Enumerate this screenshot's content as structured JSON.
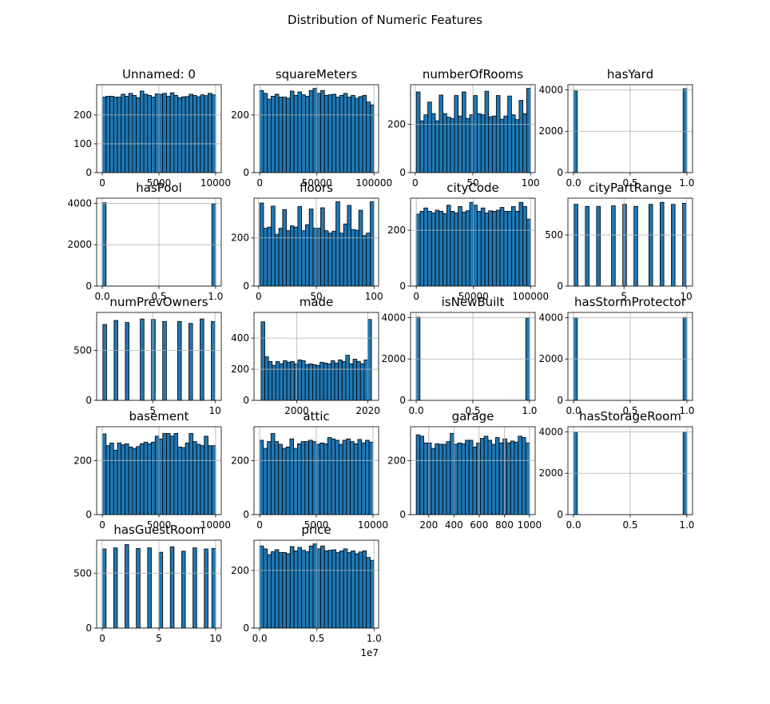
{
  "figure": {
    "suptitle": "Distribution of Numeric Features"
  },
  "colors": {
    "bar_fill": "#1f77b4",
    "bar_edge": "#000000",
    "grid": "#b0b0b0"
  },
  "chart_data": [
    {
      "type": "bar",
      "title": "Unnamed: 0",
      "grid": true,
      "bins": 30,
      "xlim": [
        -500,
        10500
      ],
      "ylim": [
        0,
        305
      ],
      "xticks": [
        0,
        5000,
        10000
      ],
      "xtick_labels": [
        "0",
        "5000",
        "10000"
      ],
      "yticks": [
        0,
        100,
        200
      ],
      "ytick_labels": [
        "0",
        "100",
        "200"
      ],
      "bin_range": [
        0,
        10000
      ],
      "values": [
        262,
        265,
        265,
        262,
        262,
        272,
        265,
        275,
        268,
        260,
        283,
        272,
        268,
        262,
        273,
        272,
        275,
        265,
        277,
        268,
        260,
        263,
        264,
        272,
        268,
        263,
        270,
        267,
        275,
        270
      ]
    },
    {
      "type": "bar",
      "title": "squareMeters",
      "grid": true,
      "bins": 30,
      "xlim": [
        -5000,
        104000
      ],
      "ylim": [
        0,
        305
      ],
      "xticks": [
        0,
        50000,
        100000
      ],
      "xtick_labels": [
        "0",
        "50000",
        "100000"
      ],
      "yticks": [
        0,
        200
      ],
      "ytick_labels": [
        "0",
        "200"
      ],
      "bin_range": [
        0,
        100000
      ],
      "values": [
        285,
        275,
        255,
        265,
        272,
        262,
        262,
        258,
        283,
        268,
        280,
        270,
        265,
        285,
        292,
        275,
        285,
        268,
        270,
        272,
        262,
        268,
        275,
        262,
        268,
        258,
        264,
        268,
        245,
        235
      ]
    },
    {
      "type": "bar",
      "title": "numberOfRooms",
      "grid": true,
      "bins": 30,
      "xlim": [
        -4,
        104
      ],
      "ylim": [
        0,
        365
      ],
      "xticks": [
        0,
        50,
        100
      ],
      "xtick_labels": [
        "0",
        "50",
        "100"
      ],
      "yticks": [
        0,
        200
      ],
      "ytick_labels": [
        "0",
        "200"
      ],
      "bin_range": [
        1,
        100
      ],
      "values": [
        335,
        215,
        240,
        293,
        245,
        215,
        322,
        245,
        230,
        225,
        320,
        235,
        335,
        225,
        240,
        320,
        245,
        240,
        338,
        232,
        235,
        320,
        222,
        235,
        318,
        240,
        220,
        300,
        245,
        350
      ]
    },
    {
      "type": "bar",
      "title": "hasYard",
      "grid": true,
      "bins": 30,
      "xlim": [
        -0.05,
        1.05
      ],
      "ylim": [
        0,
        4250
      ],
      "xticks": [
        0,
        0.5,
        1
      ],
      "xtick_labels": [
        "0.0",
        "0.5",
        "1.0"
      ],
      "yticks": [
        0,
        2000,
        4000
      ],
      "ytick_labels": [
        "0",
        "2000",
        "4000"
      ],
      "bin_range": [
        0,
        1
      ],
      "values": [
        3945,
        0,
        0,
        0,
        0,
        0,
        0,
        0,
        0,
        0,
        0,
        0,
        0,
        0,
        0,
        0,
        0,
        0,
        0,
        0,
        0,
        0,
        0,
        0,
        0,
        0,
        0,
        0,
        0,
        4055
      ]
    },
    {
      "type": "bar",
      "title": "hasPool",
      "grid": true,
      "bins": 30,
      "xlim": [
        -0.05,
        1.05
      ],
      "ylim": [
        0,
        4250
      ],
      "xticks": [
        0,
        0.5,
        1
      ],
      "xtick_labels": [
        "0.0",
        "0.5",
        "1.0"
      ],
      "yticks": [
        0,
        2000,
        4000
      ],
      "ytick_labels": [
        "0",
        "2000",
        "4000"
      ],
      "bin_range": [
        0,
        1
      ],
      "values": [
        4030,
        0,
        0,
        0,
        0,
        0,
        0,
        0,
        0,
        0,
        0,
        0,
        0,
        0,
        0,
        0,
        0,
        0,
        0,
        0,
        0,
        0,
        0,
        0,
        0,
        0,
        0,
        0,
        0,
        3970
      ]
    },
    {
      "type": "bar",
      "title": "floors",
      "grid": true,
      "bins": 30,
      "xlim": [
        -4,
        104
      ],
      "ylim": [
        0,
        365
      ],
      "xticks": [
        0,
        50,
        100
      ],
      "xtick_labels": [
        "0",
        "50",
        "100"
      ],
      "yticks": [
        0,
        200
      ],
      "ytick_labels": [
        "0",
        "200"
      ],
      "bin_range": [
        1,
        100
      ],
      "values": [
        345,
        240,
        245,
        332,
        215,
        240,
        318,
        230,
        250,
        245,
        330,
        230,
        255,
        320,
        240,
        240,
        325,
        230,
        220,
        228,
        350,
        220,
        258,
        335,
        235,
        232,
        315,
        210,
        220,
        350
      ]
    },
    {
      "type": "bar",
      "title": "cityCode",
      "grid": true,
      "bins": 30,
      "xlim": [
        -5000,
        104000
      ],
      "ylim": [
        0,
        315
      ],
      "xticks": [
        0,
        50000,
        100000
      ],
      "xtick_labels": [
        "0",
        "50000",
        "100000"
      ],
      "yticks": [
        0,
        200
      ],
      "ytick_labels": [
        "0",
        "200"
      ],
      "bin_range": [
        0,
        100000
      ],
      "values": [
        258,
        268,
        280,
        268,
        262,
        272,
        268,
        260,
        290,
        268,
        262,
        285,
        265,
        270,
        300,
        290,
        268,
        280,
        262,
        270,
        268,
        272,
        282,
        268,
        268,
        285,
        268,
        300,
        285,
        240
      ]
    },
    {
      "type": "bar",
      "title": "cityPartRange",
      "grid": true,
      "bins": 30,
      "xlim": [
        0.5,
        10.5
      ],
      "ylim": [
        0,
        860
      ],
      "xticks": [
        5,
        10
      ],
      "xtick_labels": [
        "5",
        "10"
      ],
      "yticks": [
        0,
        500
      ],
      "ytick_labels": [
        "0",
        "500"
      ],
      "bin_range": [
        1,
        10
      ],
      "values": [
        800,
        0,
        0,
        780,
        0,
        0,
        780,
        0,
        0,
        0,
        785,
        0,
        0,
        800,
        0,
        0,
        780,
        0,
        0,
        0,
        800,
        0,
        0,
        820,
        0,
        0,
        800,
        0,
        0,
        810
      ]
    },
    {
      "type": "bar",
      "title": "numPrevOwners",
      "grid": true,
      "bins": 30,
      "xlim": [
        0.5,
        10.5
      ],
      "ylim": [
        0,
        880
      ],
      "xticks": [
        5,
        10
      ],
      "xtick_labels": [
        "5",
        "10"
      ],
      "yticks": [
        0,
        500
      ],
      "ytick_labels": [
        "0",
        "500"
      ],
      "bin_range": [
        1,
        10
      ],
      "values": [
        760,
        0,
        0,
        800,
        0,
        0,
        780,
        0,
        0,
        0,
        815,
        0,
        0,
        810,
        0,
        0,
        790,
        0,
        0,
        0,
        790,
        0,
        0,
        770,
        0,
        0,
        815,
        0,
        0,
        790
      ]
    },
    {
      "type": "bar",
      "title": "made",
      "grid": true,
      "bins": 30,
      "xlim": [
        1988,
        2023
      ],
      "ylim": [
        0,
        565
      ],
      "xticks": [
        2000,
        2020
      ],
      "xtick_labels": [
        "2000",
        "2020"
      ],
      "yticks": [
        0,
        200,
        400
      ],
      "ytick_labels": [
        "0",
        "200",
        "400"
      ],
      "bin_range": [
        1990,
        2021
      ],
      "values": [
        505,
        280,
        250,
        225,
        250,
        235,
        255,
        245,
        250,
        235,
        260,
        255,
        230,
        235,
        230,
        225,
        245,
        240,
        235,
        255,
        240,
        260,
        250,
        290,
        235,
        265,
        250,
        235,
        260,
        520
      ]
    },
    {
      "type": "bar",
      "title": "isNewBuilt",
      "grid": true,
      "bins": 30,
      "xlim": [
        -0.05,
        1.05
      ],
      "ylim": [
        0,
        4250
      ],
      "xticks": [
        0,
        0.5,
        1
      ],
      "xtick_labels": [
        "0.0",
        "0.5",
        "1.0"
      ],
      "yticks": [
        0,
        2000,
        4000
      ],
      "ytick_labels": [
        "0",
        "2000",
        "4000"
      ],
      "bin_range": [
        0,
        1
      ],
      "values": [
        4020,
        0,
        0,
        0,
        0,
        0,
        0,
        0,
        0,
        0,
        0,
        0,
        0,
        0,
        0,
        0,
        0,
        0,
        0,
        0,
        0,
        0,
        0,
        0,
        0,
        0,
        0,
        0,
        0,
        3980
      ]
    },
    {
      "type": "bar",
      "title": "hasStormProtector",
      "grid": true,
      "bins": 30,
      "xlim": [
        -0.05,
        1.05
      ],
      "ylim": [
        0,
        4250
      ],
      "xticks": [
        0,
        0.5,
        1
      ],
      "xtick_labels": [
        "0.0",
        "0.5",
        "1.0"
      ],
      "yticks": [
        0,
        2000,
        4000
      ],
      "ytick_labels": [
        "0",
        "2000",
        "4000"
      ],
      "bin_range": [
        0,
        1
      ],
      "values": [
        3990,
        0,
        0,
        0,
        0,
        0,
        0,
        0,
        0,
        0,
        0,
        0,
        0,
        0,
        0,
        0,
        0,
        0,
        0,
        0,
        0,
        0,
        0,
        0,
        0,
        0,
        0,
        0,
        0,
        4010
      ]
    },
    {
      "type": "bar",
      "title": "basement",
      "grid": true,
      "bins": 30,
      "xlim": [
        -500,
        10500
      ],
      "ylim": [
        0,
        325
      ],
      "xticks": [
        0,
        5000,
        10000
      ],
      "xtick_labels": [
        "0",
        "5000",
        "10000"
      ],
      "yticks": [
        0,
        200
      ],
      "ytick_labels": [
        "0",
        "200"
      ],
      "bin_range": [
        0,
        10000
      ],
      "values": [
        298,
        255,
        265,
        238,
        265,
        258,
        262,
        250,
        245,
        252,
        262,
        268,
        262,
        268,
        290,
        280,
        300,
        300,
        290,
        300,
        250,
        248,
        265,
        300,
        270,
        260,
        255,
        290,
        255,
        255
      ]
    },
    {
      "type": "bar",
      "title": "attic",
      "grid": true,
      "bins": 30,
      "xlim": [
        -500,
        10500
      ],
      "ylim": [
        0,
        325
      ],
      "xticks": [
        0,
        5000,
        10000
      ],
      "xtick_labels": [
        "0",
        "5000",
        "10000"
      ],
      "yticks": [
        0,
        200
      ],
      "ytick_labels": [
        "0",
        "200"
      ],
      "bin_range": [
        0,
        10000
      ],
      "values": [
        275,
        245,
        270,
        300,
        270,
        260,
        245,
        250,
        280,
        245,
        262,
        270,
        270,
        275,
        270,
        260,
        265,
        262,
        285,
        280,
        275,
        260,
        275,
        280,
        270,
        262,
        278,
        265,
        275,
        268
      ]
    },
    {
      "type": "bar",
      "title": "garage",
      "grid": true,
      "bins": 30,
      "xlim": [
        55,
        1045
      ],
      "ylim": [
        0,
        325
      ],
      "xticks": [
        200,
        400,
        600,
        800,
        1000
      ],
      "xtick_labels": [
        "200",
        "400",
        "600",
        "800",
        "1000"
      ],
      "yticks": [
        0,
        200
      ],
      "ytick_labels": [
        "0",
        "200"
      ],
      "bin_range": [
        100,
        1000
      ],
      "values": [
        295,
        290,
        265,
        265,
        245,
        262,
        260,
        260,
        270,
        300,
        260,
        265,
        262,
        275,
        275,
        250,
        265,
        282,
        290,
        275,
        260,
        285,
        265,
        280,
        265,
        272,
        268,
        290,
        285,
        265
      ]
    },
    {
      "type": "bar",
      "title": "hasStorageRoom",
      "grid": true,
      "bins": 30,
      "xlim": [
        -0.05,
        1.05
      ],
      "ylim": [
        0,
        4250
      ],
      "xticks": [
        0,
        0.5,
        1
      ],
      "xtick_labels": [
        "0.0",
        "0.5",
        "1.0"
      ],
      "yticks": [
        0,
        2000,
        4000
      ],
      "ytick_labels": [
        "0",
        "2000",
        "4000"
      ],
      "bin_range": [
        0,
        1
      ],
      "values": [
        4000,
        0,
        0,
        0,
        0,
        0,
        0,
        0,
        0,
        0,
        0,
        0,
        0,
        0,
        0,
        0,
        0,
        0,
        0,
        0,
        0,
        0,
        0,
        0,
        0,
        0,
        0,
        0,
        0,
        4000
      ]
    },
    {
      "type": "bar",
      "title": "hasGuestRoom",
      "grid": true,
      "bins": 30,
      "xlim": [
        -0.5,
        10.5
      ],
      "ylim": [
        0,
        800
      ],
      "xticks": [
        0,
        5,
        10
      ],
      "xtick_labels": [
        "0",
        "5",
        "10"
      ],
      "yticks": [
        0,
        500
      ],
      "ytick_labels": [
        "0",
        "500"
      ],
      "bin_range": [
        0,
        10
      ],
      "values": [
        720,
        0,
        0,
        730,
        0,
        0,
        760,
        0,
        0,
        725,
        0,
        0,
        730,
        0,
        0,
        690,
        0,
        0,
        740,
        0,
        0,
        700,
        0,
        0,
        730,
        0,
        0,
        720,
        0,
        725
      ]
    },
    {
      "type": "bar",
      "title": "price",
      "grid": true,
      "bins": 30,
      "xlim": [
        -0.05,
        1.04
      ],
      "ylim": [
        0,
        305
      ],
      "xticks": [
        0,
        0.5,
        1
      ],
      "xtick_labels": [
        "0.0",
        "0.5",
        "1.0"
      ],
      "yticks": [
        0,
        200
      ],
      "ytick_labels": [
        "0",
        "200"
      ],
      "bin_range": [
        0,
        1
      ],
      "xoffset_label": "1e7",
      "values": [
        285,
        275,
        255,
        265,
        272,
        262,
        262,
        258,
        283,
        268,
        280,
        270,
        265,
        285,
        292,
        275,
        285,
        268,
        270,
        272,
        262,
        268,
        275,
        262,
        268,
        258,
        264,
        268,
        245,
        235
      ]
    }
  ]
}
